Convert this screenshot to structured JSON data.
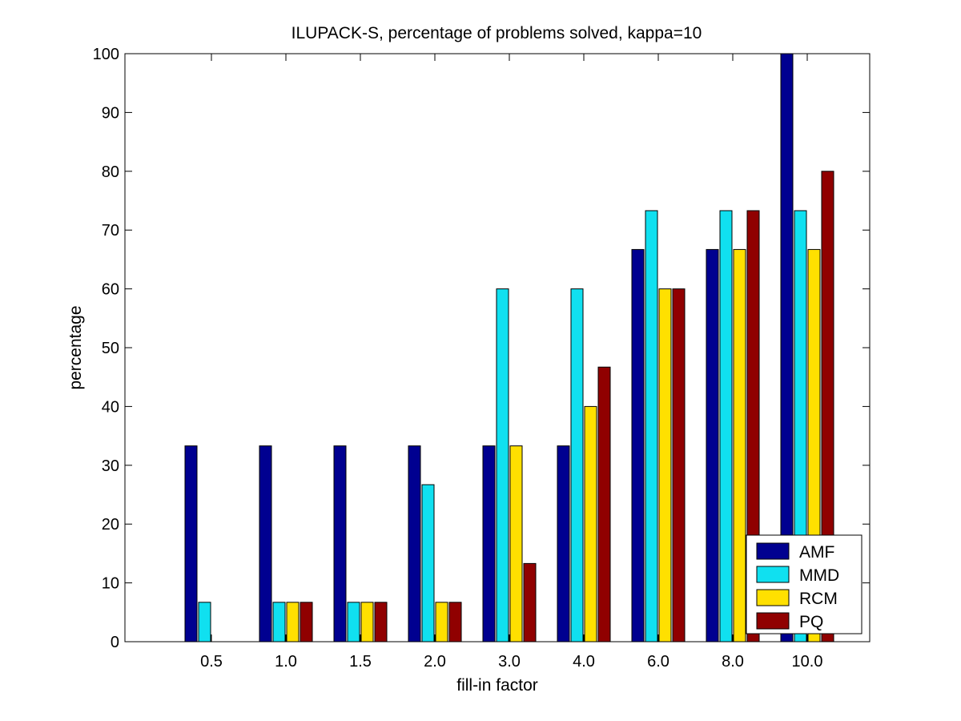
{
  "chart_data": {
    "type": "bar",
    "title": "ILUPACK-S, percentage of problems solved, kappa=10",
    "xlabel": "fill-in factor",
    "ylabel": "percentage",
    "categories": [
      "0.5",
      "1.0",
      "1.5",
      "2.0",
      "3.0",
      "4.0",
      "6.0",
      "8.0",
      "10.0"
    ],
    "ylim": [
      0,
      100
    ],
    "yticks": [
      0,
      10,
      20,
      30,
      40,
      50,
      60,
      70,
      80,
      90,
      100
    ],
    "grid": false,
    "legend_position": "bottom-right",
    "series": [
      {
        "name": "AMF",
        "color": "#000090",
        "values": [
          33.3,
          33.3,
          33.3,
          33.3,
          33.3,
          33.3,
          66.7,
          66.7,
          100
        ]
      },
      {
        "name": "MMD",
        "color": "#10E0F0",
        "values": [
          6.7,
          6.7,
          6.7,
          26.7,
          60,
          60,
          73.3,
          73.3,
          73.3
        ]
      },
      {
        "name": "RCM",
        "color": "#FFE000",
        "values": [
          0,
          6.7,
          6.7,
          6.7,
          33.3,
          40,
          60,
          66.7,
          66.7
        ]
      },
      {
        "name": "PQ",
        "color": "#900000",
        "values": [
          0,
          6.7,
          6.7,
          6.7,
          13.3,
          46.7,
          60,
          73.3,
          80
        ]
      }
    ]
  }
}
